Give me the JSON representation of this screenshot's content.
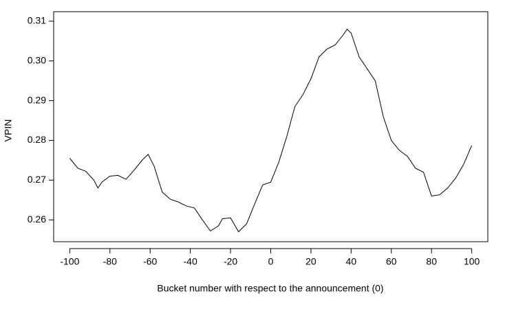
{
  "chart_data": {
    "type": "line",
    "x_label": "Bucket number with respect to the announcement (0)",
    "y_label": "VPIN",
    "x": [
      -100,
      -96,
      -92,
      -88,
      -86,
      -84,
      -80,
      -76,
      -72,
      -68,
      -64,
      -61,
      -58,
      -54,
      -50,
      -46,
      -42,
      -38,
      -34,
      -30,
      -26,
      -24,
      -20,
      -16,
      -12,
      -8,
      -4,
      0,
      4,
      8,
      12,
      16,
      20,
      24,
      28,
      32,
      36,
      38,
      40,
      44,
      48,
      52,
      56,
      60,
      64,
      68,
      72,
      76,
      80,
      84,
      88,
      92,
      96,
      100
    ],
    "values": [
      0.2755,
      0.273,
      0.2722,
      0.27,
      0.268,
      0.2695,
      0.271,
      0.2712,
      0.2702,
      0.2725,
      0.275,
      0.2765,
      0.2735,
      0.267,
      0.2652,
      0.2645,
      0.2635,
      0.263,
      0.26,
      0.2572,
      0.2585,
      0.2603,
      0.2605,
      0.257,
      0.259,
      0.264,
      0.2688,
      0.2695,
      0.2745,
      0.281,
      0.2885,
      0.2915,
      0.2955,
      0.301,
      0.303,
      0.304,
      0.3065,
      0.308,
      0.307,
      0.301,
      0.298,
      0.295,
      0.286,
      0.28,
      0.2775,
      0.276,
      0.273,
      0.272,
      0.266,
      0.2663,
      0.268,
      0.2705,
      0.274,
      0.2787
    ],
    "color": "#000000",
    "xlim": [
      -108,
      108
    ],
    "ylim": [
      0.2545,
      0.3124
    ],
    "xticks": [
      -100,
      -80,
      -60,
      -40,
      -20,
      0,
      20,
      40,
      60,
      80,
      100
    ],
    "yticks": [
      0.26,
      0.27,
      0.28,
      0.29,
      {
        "value": 0.3,
        "label": "0.30"
      },
      0.31
    ]
  }
}
